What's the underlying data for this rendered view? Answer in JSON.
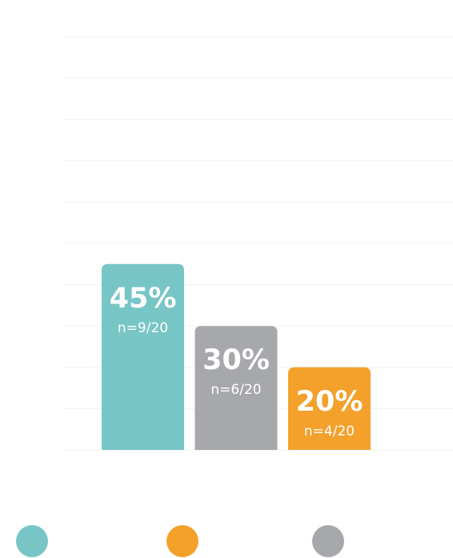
{
  "chart_data": {
    "type": "bar",
    "categories": [
      null,
      null,
      null
    ],
    "values": [
      45,
      30,
      20
    ],
    "value_labels": [
      "45%",
      "30%",
      "20%"
    ],
    "value_sublabels": [
      "n=9/20",
      "n=6/20",
      "n=4/20"
    ],
    "colors": [
      "#78c5c6",
      "#a7a8ac",
      "#f3a12b"
    ],
    "ylim": [
      0,
      100
    ],
    "yticks": [
      0,
      10,
      20,
      30,
      40,
      50,
      60,
      70,
      80,
      90,
      100
    ],
    "grid": true,
    "legend_colors": [
      "#78c5c6",
      "#f3a12b",
      "#a7a8ac"
    ]
  }
}
